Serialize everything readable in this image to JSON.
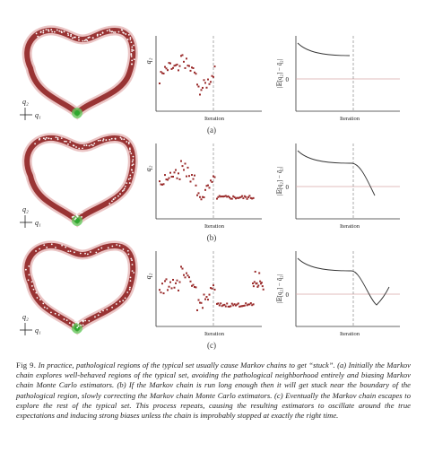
{
  "panels": [
    {
      "label": "(a)",
      "axis_left": "q₂",
      "axis_right": "|𝔼[q₂] − q̂₂|",
      "xlabel": "Iteration",
      "origin_right": "0",
      "legend_q2": "q₂",
      "legend_q1": "q₁",
      "stuck": false,
      "error_curve": "flat"
    },
    {
      "label": "(b)",
      "axis_left": "q₂",
      "axis_right": "|𝔼[q₂] − q̂₂|",
      "xlabel": "Iteration",
      "origin_right": "0",
      "legend_q2": "q₂",
      "legend_q1": "q₁",
      "stuck": true,
      "error_curve": "drop"
    },
    {
      "label": "(c)",
      "axis_left": "q₂",
      "axis_right": "|𝔼[q₂] − q̂₂|",
      "xlabel": "Iteration",
      "origin_right": "0",
      "legend_q2": "q₂",
      "legend_q1": "q₁",
      "stuck": true,
      "escape": true,
      "error_curve": "dip-recover"
    }
  ],
  "caption": {
    "fig_label": "Fig 9.",
    "text": "In practice, pathological regions of the typical set usually cause Markov chains to get “stuck”. (a) Initially the Markov chain explores well-behaved regions of the typical set, avoiding the pathological neighborhood entirely and biasing Markov chain Monte Carlo estimators. (b) If the Markov chain is run long enough then it will get stuck near the boundary of the pathological region, slowly correcting the Markov chain Monte Carlo estimators. (c) Eventually the Markov chain escapes to explore the rest of the typical set. This process repeats, causing the resulting estimators to oscillate around the true expectations and inducing strong biases unless the chain is improbably stopped at exactly the right time."
  },
  "colors": {
    "ring": "#8b1a1a",
    "ring_glow": "#c65a5a",
    "pathology": "#5fd35f",
    "sample": "#9a2b2b",
    "axis": "#333333",
    "zero_line": "#d9a8a8",
    "dashed": "#888888",
    "curve": "#333333"
  }
}
